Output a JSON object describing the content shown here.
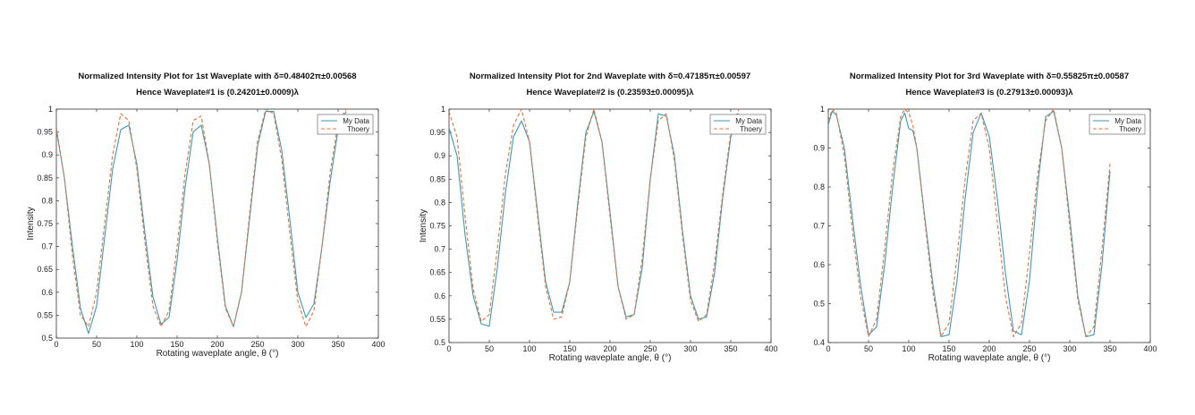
{
  "chart_data": [
    {
      "type": "line",
      "title": "Normalized Intensity Plot for 1st Waveplate with δ=0.48402π±0.00568",
      "subtitle": "Hence Waveplate#1 is (0.24201±0.0009)λ",
      "xlabel": "Rotating waveplate angle, θ (°)",
      "ylabel": "Intensity",
      "xlim": [
        0,
        400
      ],
      "ylim": [
        0.5,
        1
      ],
      "xticks": [
        "0",
        "50",
        "100",
        "150",
        "200",
        "250",
        "300",
        "350",
        "400"
      ],
      "yticks": [
        "0.5",
        "0.55",
        "0.6",
        "0.65",
        "0.7",
        "0.75",
        "0.8",
        "0.85",
        "0.9",
        "0.95",
        "1"
      ],
      "grid": false,
      "legend": "top-right",
      "series": [
        {
          "name": "My Data",
          "color": "#3a9bb5",
          "style": "solid",
          "x": [
            0,
            10,
            20,
            30,
            40,
            50,
            60,
            70,
            80,
            90,
            100,
            110,
            120,
            130,
            140,
            150,
            160,
            170,
            180,
            190,
            200,
            210,
            220,
            230,
            240,
            250,
            260,
            270,
            280,
            290,
            300,
            310,
            320,
            330,
            340,
            350,
            360
          ],
          "y": [
            0.955,
            0.85,
            0.7,
            0.565,
            0.51,
            0.57,
            0.72,
            0.87,
            0.955,
            0.965,
            0.88,
            0.73,
            0.59,
            0.53,
            0.545,
            0.67,
            0.83,
            0.95,
            0.965,
            0.88,
            0.72,
            0.57,
            0.525,
            0.6,
            0.76,
            0.92,
            0.995,
            0.995,
            0.91,
            0.76,
            0.6,
            0.545,
            0.575,
            0.7,
            0.84,
            0.955,
            0.995
          ]
        },
        {
          "name": "Thoery",
          "color": "#e8703a",
          "style": "dashed",
          "x": [
            0,
            10,
            20,
            30,
            40,
            50,
            60,
            70,
            80,
            90,
            100,
            110,
            120,
            130,
            140,
            150,
            160,
            170,
            180,
            190,
            200,
            210,
            220,
            230,
            240,
            250,
            260,
            270,
            280,
            290,
            300,
            310,
            320,
            330,
            340,
            350,
            360
          ],
          "y": [
            0.96,
            0.85,
            0.68,
            0.55,
            0.525,
            0.6,
            0.75,
            0.9,
            0.99,
            0.975,
            0.87,
            0.71,
            0.57,
            0.525,
            0.56,
            0.7,
            0.86,
            0.975,
            0.985,
            0.88,
            0.71,
            0.565,
            0.525,
            0.6,
            0.77,
            0.93,
            1.0,
            0.99,
            0.89,
            0.73,
            0.58,
            0.525,
            0.56,
            0.7,
            0.86,
            0.97,
            1.0
          ]
        }
      ]
    },
    {
      "type": "line",
      "title": "Normalized Intensity Plot for 2nd Waveplate with δ=0.47185π±0.00597",
      "subtitle": "Hence Waveplate#2 is (0.23593±0.00095)λ",
      "xlabel": "Rotating waveplate angle, θ (°)",
      "ylabel": "Intensity",
      "xlim": [
        0,
        400
      ],
      "ylim": [
        0.5,
        1
      ],
      "xticks": [
        "0",
        "50",
        "100",
        "150",
        "200",
        "250",
        "300",
        "350",
        "400"
      ],
      "yticks": [
        "0.5",
        "0.55",
        "0.6",
        "0.65",
        "0.7",
        "0.75",
        "0.8",
        "0.85",
        "0.9",
        "0.95",
        "1"
      ],
      "grid": false,
      "legend": "top-right",
      "series": [
        {
          "name": "My Data",
          "color": "#3a9bb5",
          "style": "solid",
          "x": [
            0,
            10,
            20,
            30,
            40,
            50,
            60,
            70,
            80,
            90,
            100,
            110,
            120,
            130,
            140,
            150,
            160,
            170,
            180,
            190,
            200,
            210,
            220,
            230,
            240,
            250,
            260,
            270,
            280,
            290,
            300,
            310,
            320,
            330,
            340,
            350,
            360
          ],
          "y": [
            0.96,
            0.9,
            0.73,
            0.6,
            0.54,
            0.535,
            0.66,
            0.82,
            0.94,
            0.975,
            0.93,
            0.78,
            0.63,
            0.565,
            0.565,
            0.63,
            0.8,
            0.95,
            0.995,
            0.93,
            0.78,
            0.62,
            0.555,
            0.56,
            0.66,
            0.85,
            0.99,
            0.985,
            0.9,
            0.74,
            0.6,
            0.55,
            0.555,
            0.65,
            0.81,
            0.94,
            0.99
          ]
        },
        {
          "name": "Thoery",
          "color": "#e8703a",
          "style": "dashed",
          "x": [
            0,
            10,
            20,
            30,
            40,
            50,
            60,
            70,
            80,
            90,
            100,
            110,
            120,
            130,
            140,
            150,
            160,
            170,
            180,
            190,
            200,
            210,
            220,
            230,
            240,
            250,
            260,
            270,
            280,
            290,
            300,
            310,
            320,
            330,
            340,
            350,
            360
          ],
          "y": [
            0.995,
            0.94,
            0.77,
            0.615,
            0.545,
            0.56,
            0.7,
            0.86,
            0.965,
            1.0,
            0.93,
            0.77,
            0.62,
            0.55,
            0.555,
            0.63,
            0.79,
            0.94,
            1.0,
            0.93,
            0.77,
            0.62,
            0.55,
            0.56,
            0.68,
            0.85,
            0.975,
            0.99,
            0.89,
            0.73,
            0.59,
            0.545,
            0.56,
            0.67,
            0.82,
            0.95,
            1.0
          ]
        }
      ]
    },
    {
      "type": "line",
      "title": "Normalized Intensity Plot for 3rd Waveplate with δ=0.55825π±0.00587",
      "subtitle": "Hence Waveplate#3 is (0.27913±0.00093)λ",
      "xlabel": "Rotating waveplate angle, θ (°)",
      "ylabel": "",
      "xlim": [
        0,
        400
      ],
      "ylim": [
        0.4,
        1
      ],
      "xticks": [
        "0",
        "50",
        "100",
        "150",
        "200",
        "250",
        "300",
        "350",
        "400"
      ],
      "yticks": [
        "0.4",
        "0.5",
        "0.6",
        "0.7",
        "0.8",
        "0.9",
        "1"
      ],
      "grid": false,
      "legend": "top-right",
      "series": [
        {
          "name": "My Data",
          "color": "#3a9bb5",
          "style": "solid",
          "x": [
            0,
            5,
            10,
            20,
            30,
            40,
            50,
            60,
            70,
            80,
            90,
            95,
            100,
            105,
            110,
            120,
            130,
            140,
            150,
            160,
            170,
            180,
            190,
            200,
            210,
            220,
            230,
            240,
            250,
            260,
            270,
            280,
            290,
            300,
            310,
            320,
            330,
            340,
            350
          ],
          "y": [
            0.96,
            0.995,
            0.985,
            0.9,
            0.72,
            0.55,
            0.42,
            0.44,
            0.6,
            0.8,
            0.97,
            0.99,
            0.95,
            0.945,
            0.9,
            0.72,
            0.55,
            0.415,
            0.42,
            0.56,
            0.77,
            0.94,
            0.99,
            0.93,
            0.77,
            0.58,
            0.43,
            0.42,
            0.56,
            0.8,
            0.98,
            0.995,
            0.9,
            0.72,
            0.52,
            0.415,
            0.42,
            0.6,
            0.84
          ]
        },
        {
          "name": "Thoery",
          "color": "#e8703a",
          "style": "dashed",
          "x": [
            0,
            5,
            10,
            20,
            30,
            40,
            50,
            60,
            70,
            80,
            90,
            95,
            100,
            105,
            110,
            120,
            130,
            140,
            150,
            160,
            170,
            180,
            190,
            200,
            210,
            220,
            230,
            240,
            250,
            260,
            270,
            280,
            290,
            300,
            310,
            320,
            330,
            340,
            350
          ],
          "y": [
            0.97,
            1.0,
            0.99,
            0.88,
            0.69,
            0.52,
            0.415,
            0.46,
            0.64,
            0.84,
            0.98,
            1.0,
            0.99,
            0.96,
            0.9,
            0.71,
            0.53,
            0.415,
            0.45,
            0.62,
            0.82,
            0.97,
            0.99,
            0.9,
            0.71,
            0.52,
            0.415,
            0.45,
            0.63,
            0.83,
            0.97,
            1.0,
            0.9,
            0.7,
            0.51,
            0.415,
            0.44,
            0.64,
            0.86
          ]
        }
      ]
    }
  ]
}
